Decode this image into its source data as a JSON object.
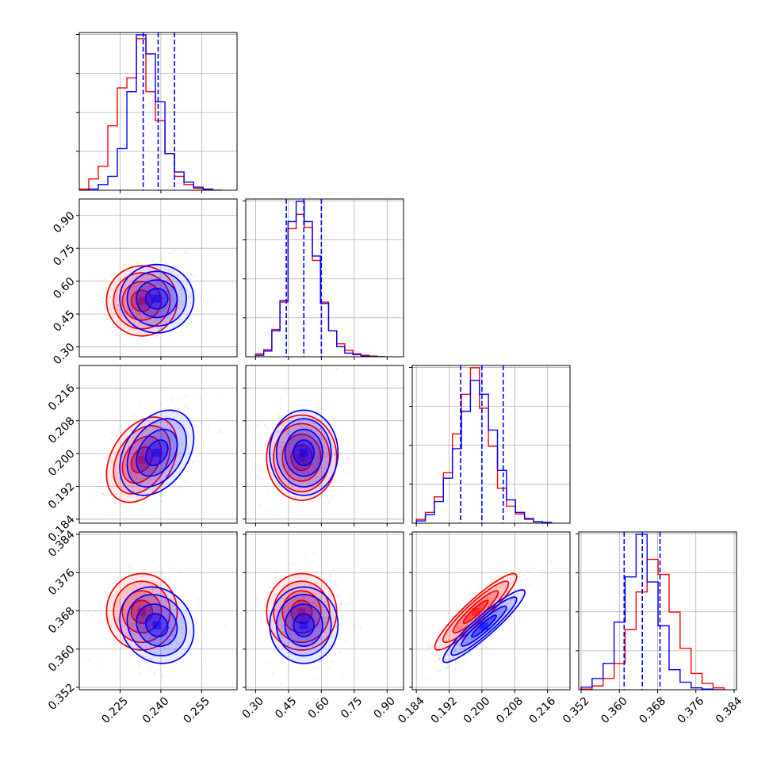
{
  "chart_data": {
    "type": "corner",
    "parameters": 4,
    "colors": {
      "series_a": "#ff0000",
      "series_b": "#0000ff",
      "quantile_lines": "#0000ff"
    },
    "grid": true,
    "axes": [
      {
        "range": [
          0.21,
          0.268
        ],
        "ticks": [
          0.225,
          0.24,
          0.255
        ],
        "tick_labels": [
          "0.225",
          "0.240",
          "0.255"
        ]
      },
      {
        "range": [
          0.255,
          0.975
        ],
        "ticks": [
          0.3,
          0.45,
          0.6,
          0.75,
          0.9
        ],
        "tick_labels": [
          "0.30",
          "0.45",
          "0.60",
          "0.75",
          "0.90"
        ]
      },
      {
        "range": [
          0.183,
          0.2215
        ],
        "ticks": [
          0.184,
          0.192,
          0.2,
          0.208,
          0.216
        ],
        "tick_labels": [
          "0.184",
          "0.192",
          "0.200",
          "0.208",
          "0.216"
        ]
      },
      {
        "range": [
          0.3515,
          0.3845
        ],
        "ticks": [
          0.352,
          0.36,
          0.368,
          0.376,
          0.384
        ],
        "tick_labels": [
          "0.352",
          "0.360",
          "0.368",
          "0.376",
          "0.384"
        ]
      }
    ],
    "quantiles": [
      [
        0.2335,
        0.239,
        0.245
      ],
      [
        0.44,
        0.52,
        0.6
      ],
      [
        0.1948,
        0.2,
        0.2052
      ],
      [
        0.361,
        0.3648,
        0.3685
      ]
    ],
    "histograms": [
      {
        "edges": [
          0.21,
          0.2135,
          0.217,
          0.2205,
          0.224,
          0.2275,
          0.231,
          0.2345,
          0.238,
          0.2415,
          0.245,
          0.2485,
          0.252,
          0.2555,
          0.259,
          0.2625
        ],
        "series_a": [
          2,
          18,
          38,
          102,
          162,
          178,
          240,
          156,
          110,
          58,
          22,
          9,
          3,
          1,
          0
        ],
        "series_b": [
          0,
          2,
          9,
          22,
          66,
          156,
          246,
          216,
          140,
          58,
          29,
          13,
          5,
          2,
          0
        ]
      },
      {
        "edges": [
          0.3,
          0.337,
          0.374,
          0.411,
          0.448,
          0.485,
          0.522,
          0.559,
          0.596,
          0.633,
          0.67,
          0.707,
          0.744,
          0.781,
          0.818,
          0.855,
          0.892
        ],
        "series_a": [
          4,
          10,
          38,
          76,
          178,
          198,
          180,
          134,
          76,
          36,
          18,
          9,
          4,
          2,
          1,
          0
        ],
        "series_b": [
          2,
          8,
          36,
          78,
          188,
          216,
          188,
          140,
          74,
          36,
          14,
          5,
          3,
          1,
          0,
          0
        ]
      },
      {
        "edges": [
          0.184,
          0.1862,
          0.1884,
          0.1906,
          0.1928,
          0.195,
          0.1972,
          0.1994,
          0.2016,
          0.2038,
          0.206,
          0.2082,
          0.2104,
          0.2126,
          0.2148,
          0.217
        ],
        "series_a": [
          5,
          14,
          34,
          65,
          115,
          166,
          200,
          148,
          99,
          45,
          22,
          12,
          5,
          2,
          1
        ],
        "series_b": [
          3,
          11,
          28,
          58,
          96,
          144,
          184,
          166,
          120,
          68,
          30,
          14,
          6,
          2,
          1
        ]
      },
      {
        "edges": [
          0.352,
          0.3543,
          0.3566,
          0.3589,
          0.3612,
          0.3635,
          0.3658,
          0.3681,
          0.3704,
          0.3727,
          0.375,
          0.3773,
          0.3796,
          0.3819
        ],
        "series_a": [
          1,
          6,
          18,
          42,
          96,
          156,
          208,
          184,
          124,
          66,
          26,
          10,
          3
        ],
        "series_b": [
          4,
          18,
          42,
          108,
          180,
          248,
          172,
          102,
          32,
          12,
          3,
          1,
          0
        ]
      }
    ],
    "pairs": [
      {
        "row": 1,
        "col": 0,
        "a": {
          "mean": [
            0.233,
            0.51
          ],
          "sd": [
            0.0065,
            0.08
          ],
          "rho": 0.0
        },
        "b": {
          "mean": [
            0.2385,
            0.52
          ],
          "sd": [
            0.0068,
            0.078
          ],
          "rho": 0.0
        }
      },
      {
        "row": 2,
        "col": 0,
        "a": {
          "mean": [
            0.233,
            0.1985
          ],
          "sd": [
            0.0065,
            0.0052
          ],
          "rho": 0.35
        },
        "b": {
          "mean": [
            0.2385,
            0.2002
          ],
          "sd": [
            0.0068,
            0.0052
          ],
          "rho": 0.35
        }
      },
      {
        "row": 2,
        "col": 1,
        "a": {
          "mean": [
            0.51,
            0.199
          ],
          "sd": [
            0.08,
            0.0052
          ],
          "rho": 0.0
        },
        "b": {
          "mean": [
            0.52,
            0.2002
          ],
          "sd": [
            0.078,
            0.0052
          ],
          "rho": 0.0
        }
      },
      {
        "row": 3,
        "col": 0,
        "a": {
          "mean": [
            0.233,
            0.3678
          ],
          "sd": [
            0.0065,
            0.004
          ],
          "rho": 0.0
        },
        "b": {
          "mean": [
            0.2385,
            0.365
          ],
          "sd": [
            0.0068,
            0.004
          ],
          "rho": -0.15
        }
      },
      {
        "row": 3,
        "col": 1,
        "a": {
          "mean": [
            0.51,
            0.3678
          ],
          "sd": [
            0.08,
            0.004
          ],
          "rho": 0.0
        },
        "b": {
          "mean": [
            0.52,
            0.365
          ],
          "sd": [
            0.078,
            0.004
          ],
          "rho": 0.0
        }
      },
      {
        "row": 3,
        "col": 2,
        "a": {
          "mean": [
            0.1985,
            0.3678
          ],
          "sd": [
            0.005,
            0.004
          ],
          "rho": 0.92
        },
        "b": {
          "mean": [
            0.2005,
            0.3648
          ],
          "sd": [
            0.005,
            0.0038
          ],
          "rho": 0.93
        }
      }
    ]
  }
}
